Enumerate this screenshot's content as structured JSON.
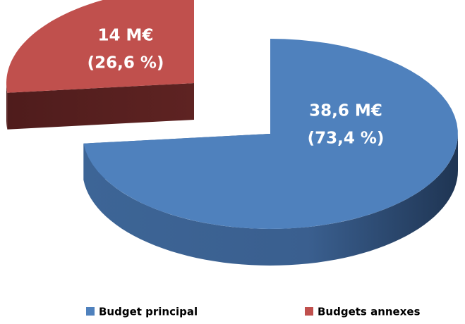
{
  "chart_data": {
    "type": "pie3d",
    "categories": [
      "Budget principal",
      "Budgets annexes"
    ],
    "values": [
      38.6,
      14
    ],
    "value_labels": [
      "38,6 M€",
      "14 M€"
    ],
    "percents": [
      73.4,
      26.6
    ],
    "percent_labels": [
      "(73,4 %)",
      "(26,6 %)"
    ],
    "colors": [
      "#4f81bd",
      "#c0504d"
    ],
    "legend": "bottom"
  }
}
